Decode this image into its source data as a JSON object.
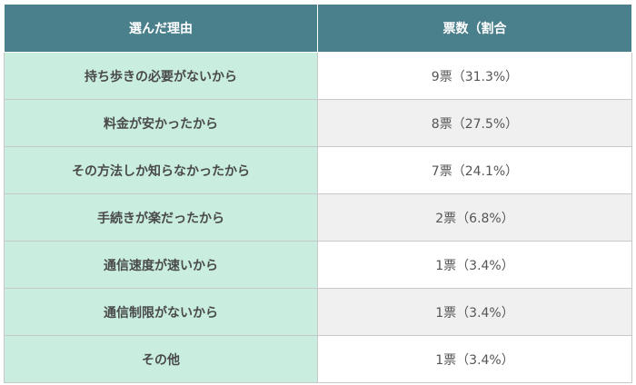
{
  "table": {
    "headers": [
      "選んだ理由",
      "票数（割合"
    ],
    "rows": [
      {
        "reason": "持ち歩きの必要がないから",
        "count": "9票（31.3%）"
      },
      {
        "reason": "料金が安かったから",
        "count": "8票（27.5%）"
      },
      {
        "reason": "その方法しか知らなかったから",
        "count": "7票（24.1%）"
      },
      {
        "reason": "手続きが楽だったから",
        "count": "2票（6.8%）"
      },
      {
        "reason": "通信速度が速いから",
        "count": "1票（3.4%）"
      },
      {
        "reason": "通信制限がないから",
        "count": "1票（3.4%）"
      },
      {
        "reason": "その他",
        "count": "1票（3.4%）"
      }
    ]
  },
  "colors": {
    "header_bg": "#4a7f8c",
    "reason_bg": "#c9eee0",
    "stripe_bg": "#f0f0f0"
  }
}
